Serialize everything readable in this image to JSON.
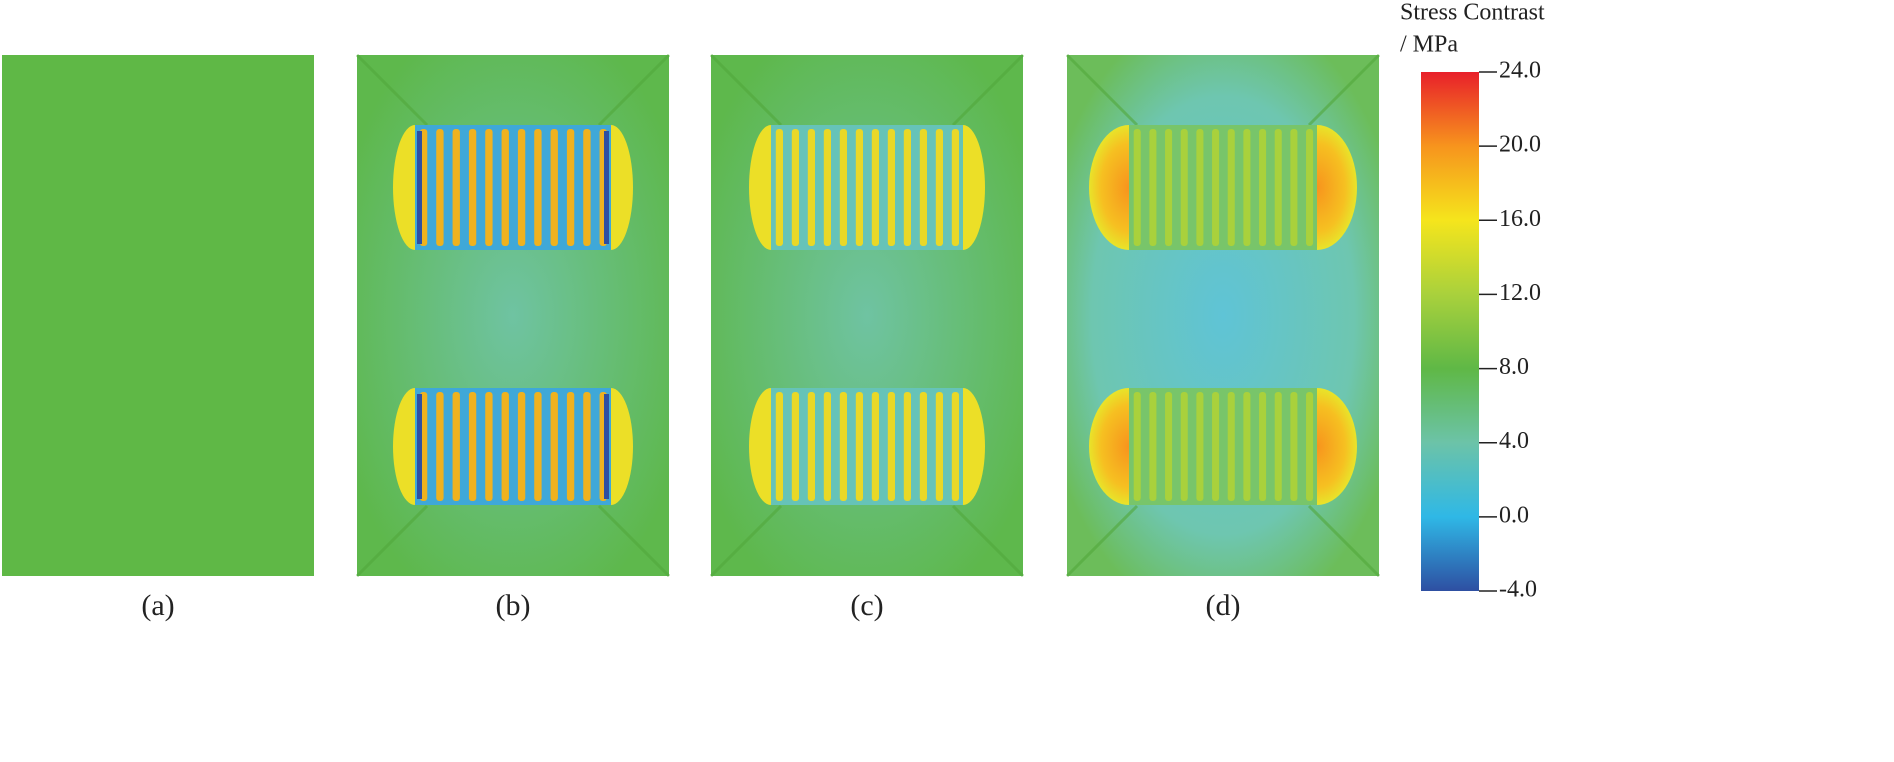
{
  "panels": [
    {
      "label": "(a)"
    },
    {
      "label": "(b)"
    },
    {
      "label": "(c)"
    },
    {
      "label": "(d)"
    }
  ],
  "colorbar": {
    "title": [
      "Stress Contrast",
      "/ MPa"
    ],
    "lim": [
      -4,
      24
    ],
    "ticks": [
      {
        "value": 24,
        "label": "24.0"
      },
      {
        "value": 20,
        "label": "20.0"
      },
      {
        "value": 16,
        "label": "16.0"
      },
      {
        "value": 12,
        "label": "12.0"
      },
      {
        "value": 8,
        "label": "8.0"
      },
      {
        "value": 4,
        "label": "4.0"
      },
      {
        "value": 0,
        "label": "0.0"
      },
      {
        "value": -4,
        "label": "-4.0"
      }
    ],
    "colors": [
      "#e8202a",
      "#f7941d",
      "#f5e51c",
      "#a9d13c",
      "#5fb846",
      "#6cc3a8",
      "#2fb8e6",
      "#2e4fa2"
    ]
  }
}
